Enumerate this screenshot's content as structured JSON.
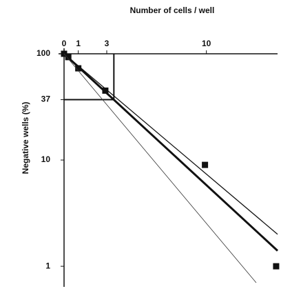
{
  "chart_data": {
    "type": "scatter",
    "xlabel": "Number of cells / well",
    "ylabel": "Negative wells (%)",
    "xlim": [
      0,
      15
    ],
    "xticks": [
      0,
      1,
      3,
      10
    ],
    "ylim": [
      0.7,
      100
    ],
    "yticks": [
      100,
      37,
      10,
      1
    ],
    "log_y": true,
    "guide": {
      "x": 3.5,
      "y": 37
    },
    "series": [
      {
        "kind": "points",
        "color": "#111111",
        "x": [
          0,
          0.3,
          1,
          2.9,
          9.9,
          14.9
        ],
        "values": [
          100,
          93,
          73,
          45,
          9,
          1
        ]
      },
      {
        "kind": "line",
        "color": "#111111",
        "width": 1.3,
        "x": [
          0,
          15
        ],
        "values": [
          100,
          2
        ]
      },
      {
        "kind": "line",
        "color": "#111111",
        "width": 3,
        "x": [
          0,
          15
        ],
        "values": [
          100,
          1.4
        ]
      },
      {
        "kind": "line",
        "color": "#333333",
        "width": 0.8,
        "x": [
          0,
          13.5
        ],
        "values": [
          100,
          0.7
        ]
      }
    ]
  }
}
